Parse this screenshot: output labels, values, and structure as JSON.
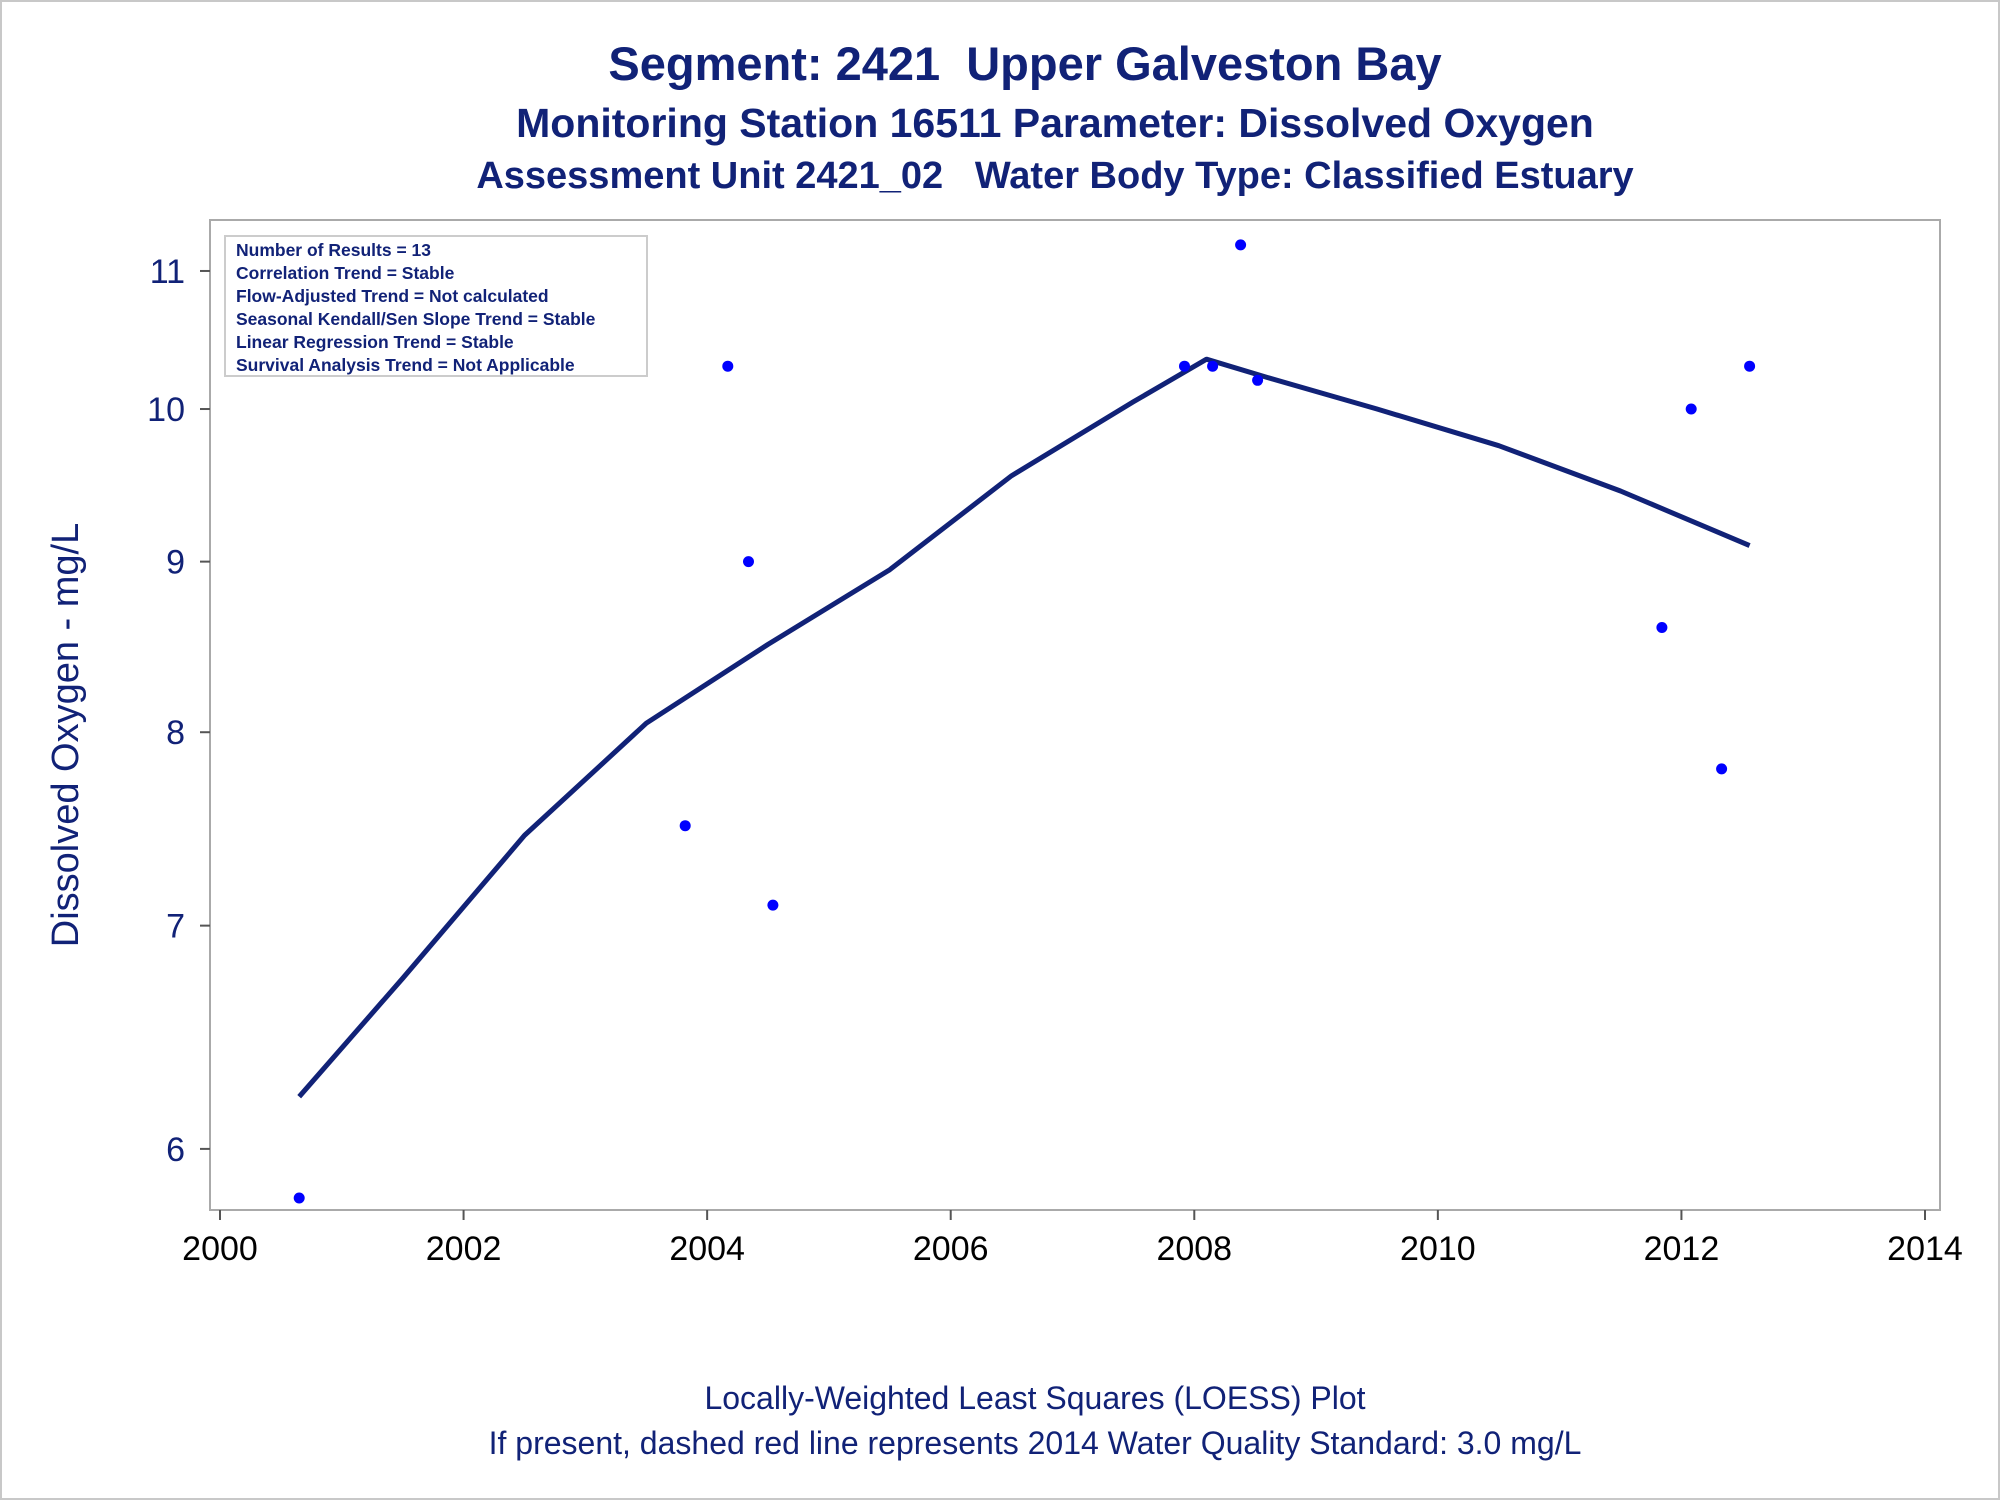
{
  "titles": {
    "line1": "Segment: 2421  Upper Galveston Bay",
    "line2": "Monitoring Station 16511 Parameter: Dissolved Oxygen",
    "line3": "Assessment Unit 2421_02   Water Body Type: Classified Estuary"
  },
  "footnotes": {
    "line1": "Locally-Weighted Least Squares (LOESS) Plot",
    "line2": "If present, dashed red line represents 2014 Water Quality Standard: 3.0 mg/L"
  },
  "chart_data": {
    "type": "scatter",
    "title": "Segment: 2421  Upper Galveston Bay",
    "xlabel": "",
    "ylabel": "Dissolved Oxygen - mg/L",
    "y_scale": "log",
    "xlim": [
      2000,
      2014
    ],
    "ylim": [
      5.8,
      11.3
    ],
    "x_ticks": [
      2000,
      2002,
      2004,
      2006,
      2008,
      2010,
      2012,
      2014
    ],
    "x_tick_labels": [
      "2000",
      "2002",
      "2004",
      "2006",
      "2008",
      "2010",
      "2012",
      "2014"
    ],
    "y_ticks": [
      6,
      7,
      8,
      9,
      10,
      11
    ],
    "y_tick_labels": [
      "6",
      "7",
      "8",
      "9",
      "10",
      "11"
    ],
    "grid": false,
    "legend_position": "top-left",
    "stats_box": [
      "Number of Results = 13",
      "Correlation Trend = Stable",
      "Flow-Adjusted Trend = Not calculated",
      "Seasonal Kendall/Sen Slope Trend = Stable",
      "Linear Regression Trend = Stable",
      "Survival Analysis Trend = Not Applicable"
    ],
    "series": [
      {
        "kind": "points",
        "color": "#0000ff",
        "points": [
          [
            2000.65,
            5.8
          ],
          [
            2003.82,
            7.5
          ],
          [
            2004.17,
            10.3
          ],
          [
            2004.34,
            9.0
          ],
          [
            2004.54,
            7.1
          ],
          [
            2007.92,
            10.3
          ],
          [
            2008.15,
            10.3
          ],
          [
            2008.38,
            11.2
          ],
          [
            2008.52,
            10.2
          ],
          [
            2011.84,
            8.6
          ],
          [
            2012.08,
            10.0
          ],
          [
            2012.33,
            7.8
          ],
          [
            2012.56,
            10.3
          ]
        ]
      },
      {
        "kind": "loess",
        "color": "#112277",
        "points": [
          [
            2000.65,
            6.22
          ],
          [
            2001.5,
            6.75
          ],
          [
            2002.5,
            7.45
          ],
          [
            2003.5,
            8.05
          ],
          [
            2004.5,
            8.5
          ],
          [
            2005.5,
            8.95
          ],
          [
            2006.5,
            9.55
          ],
          [
            2007.5,
            10.05
          ],
          [
            2008.1,
            10.35
          ],
          [
            2008.6,
            10.22
          ],
          [
            2009.5,
            10.0
          ],
          [
            2010.5,
            9.75
          ],
          [
            2011.5,
            9.45
          ],
          [
            2012.56,
            9.1
          ]
        ]
      }
    ]
  }
}
